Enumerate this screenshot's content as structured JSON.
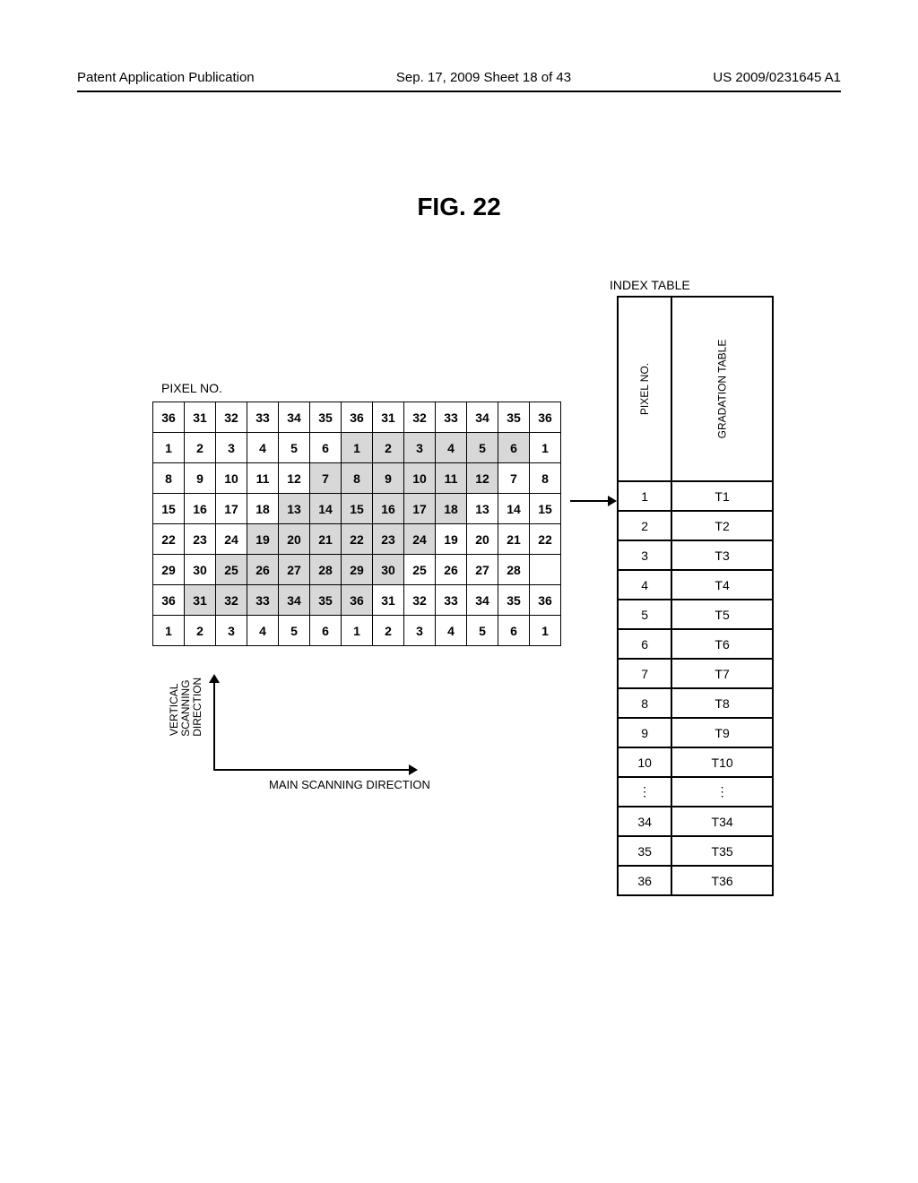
{
  "header": {
    "left": "Patent Application Publication",
    "center": "Sep. 17, 2009  Sheet 18 of 43",
    "right": "US 2009/0231645 A1"
  },
  "figure_title": "FIG. 22",
  "labels": {
    "index_table": "INDEX TABLE",
    "pixel_no": "PIXEL NO.",
    "v_scan": "VERTICAL SCANNING DIRECTION",
    "h_scan": "MAIN SCANNING DIRECTION"
  },
  "grid": {
    "rows": [
      [
        {
          "v": "36",
          "s": 0
        },
        {
          "v": "31",
          "s": 0
        },
        {
          "v": "32",
          "s": 0
        },
        {
          "v": "33",
          "s": 0
        },
        {
          "v": "34",
          "s": 0
        },
        {
          "v": "35",
          "s": 0
        },
        {
          "v": "36",
          "s": 0
        },
        {
          "v": "31",
          "s": 0
        },
        {
          "v": "32",
          "s": 0
        },
        {
          "v": "33",
          "s": 0
        },
        {
          "v": "34",
          "s": 0
        },
        {
          "v": "35",
          "s": 0
        },
        {
          "v": "36",
          "s": 0
        }
      ],
      [
        {
          "v": "1",
          "s": 0
        },
        {
          "v": "2",
          "s": 0
        },
        {
          "v": "3",
          "s": 0
        },
        {
          "v": "4",
          "s": 0
        },
        {
          "v": "5",
          "s": 0
        },
        {
          "v": "6",
          "s": 0
        },
        {
          "v": "1",
          "s": 1
        },
        {
          "v": "2",
          "s": 1
        },
        {
          "v": "3",
          "s": 1
        },
        {
          "v": "4",
          "s": 1
        },
        {
          "v": "5",
          "s": 1
        },
        {
          "v": "6",
          "s": 1
        },
        {
          "v": "1",
          "s": 0
        }
      ],
      [
        {
          "v": "8",
          "s": 0
        },
        {
          "v": "9",
          "s": 0
        },
        {
          "v": "10",
          "s": 0
        },
        {
          "v": "11",
          "s": 0
        },
        {
          "v": "12",
          "s": 0
        },
        {
          "v": "7",
          "s": 1
        },
        {
          "v": "8",
          "s": 1
        },
        {
          "v": "9",
          "s": 1
        },
        {
          "v": "10",
          "s": 1
        },
        {
          "v": "11",
          "s": 1
        },
        {
          "v": "12",
          "s": 1
        },
        {
          "v": "7",
          "s": 0
        },
        {
          "v": "8",
          "s": 0
        }
      ],
      [
        {
          "v": "15",
          "s": 0
        },
        {
          "v": "16",
          "s": 0
        },
        {
          "v": "17",
          "s": 0
        },
        {
          "v": "18",
          "s": 0
        },
        {
          "v": "13",
          "s": 1
        },
        {
          "v": "14",
          "s": 1
        },
        {
          "v": "15",
          "s": 1
        },
        {
          "v": "16",
          "s": 1
        },
        {
          "v": "17",
          "s": 1
        },
        {
          "v": "18",
          "s": 1
        },
        {
          "v": "13",
          "s": 0
        },
        {
          "v": "14",
          "s": 0
        },
        {
          "v": "15",
          "s": 0
        }
      ],
      [
        {
          "v": "22",
          "s": 0
        },
        {
          "v": "23",
          "s": 0
        },
        {
          "v": "24",
          "s": 0
        },
        {
          "v": "19",
          "s": 1
        },
        {
          "v": "20",
          "s": 1
        },
        {
          "v": "21",
          "s": 1
        },
        {
          "v": "22",
          "s": 1
        },
        {
          "v": "23",
          "s": 1
        },
        {
          "v": "24",
          "s": 1
        },
        {
          "v": "19",
          "s": 0
        },
        {
          "v": "20",
          "s": 0
        },
        {
          "v": "21",
          "s": 0
        },
        {
          "v": "22",
          "s": 0
        }
      ],
      [
        {
          "v": "29",
          "s": 0
        },
        {
          "v": "30",
          "s": 0
        },
        {
          "v": "25",
          "s": 1
        },
        {
          "v": "26",
          "s": 1
        },
        {
          "v": "27",
          "s": 1
        },
        {
          "v": "28",
          "s": 1
        },
        {
          "v": "29",
          "s": 1
        },
        {
          "v": "30",
          "s": 1
        },
        {
          "v": "25",
          "s": 0
        },
        {
          "v": "26",
          "s": 0
        },
        {
          "v": "27",
          "s": 0
        },
        {
          "v": "28",
          "s": 0
        },
        {
          "v": "",
          "s": 0
        }
      ],
      [
        {
          "v": "36",
          "s": 0
        },
        {
          "v": "31",
          "s": 1
        },
        {
          "v": "32",
          "s": 1
        },
        {
          "v": "33",
          "s": 1
        },
        {
          "v": "34",
          "s": 1
        },
        {
          "v": "35",
          "s": 1
        },
        {
          "v": "36",
          "s": 1
        },
        {
          "v": "31",
          "s": 0
        },
        {
          "v": "32",
          "s": 0
        },
        {
          "v": "33",
          "s": 0
        },
        {
          "v": "34",
          "s": 0
        },
        {
          "v": "35",
          "s": 0
        },
        {
          "v": "36",
          "s": 0
        }
      ],
      [
        {
          "v": "1",
          "s": 0
        },
        {
          "v": "2",
          "s": 0
        },
        {
          "v": "3",
          "s": 0
        },
        {
          "v": "4",
          "s": 0
        },
        {
          "v": "5",
          "s": 0
        },
        {
          "v": "6",
          "s": 0
        },
        {
          "v": "1",
          "s": 0
        },
        {
          "v": "2",
          "s": 0
        },
        {
          "v": "3",
          "s": 0
        },
        {
          "v": "4",
          "s": 0
        },
        {
          "v": "5",
          "s": 0
        },
        {
          "v": "6",
          "s": 0
        },
        {
          "v": "1",
          "s": 0
        }
      ]
    ]
  },
  "index": {
    "col1": "PIXEL NO.",
    "col2": "GRADATION TABLE",
    "rows": [
      {
        "p": "1",
        "t": "T1"
      },
      {
        "p": "2",
        "t": "T2"
      },
      {
        "p": "3",
        "t": "T3"
      },
      {
        "p": "4",
        "t": "T4"
      },
      {
        "p": "5",
        "t": "T5"
      },
      {
        "p": "6",
        "t": "T6"
      },
      {
        "p": "7",
        "t": "T7"
      },
      {
        "p": "8",
        "t": "T8"
      },
      {
        "p": "9",
        "t": "T9"
      },
      {
        "p": "10",
        "t": "T10"
      },
      {
        "p": "⋮",
        "t": "⋮"
      },
      {
        "p": "34",
        "t": "T34"
      },
      {
        "p": "35",
        "t": "T35"
      },
      {
        "p": "36",
        "t": "T36"
      }
    ]
  },
  "colors": {
    "shaded": "#d8d8d8",
    "border": "#000000",
    "bg": "#ffffff"
  }
}
